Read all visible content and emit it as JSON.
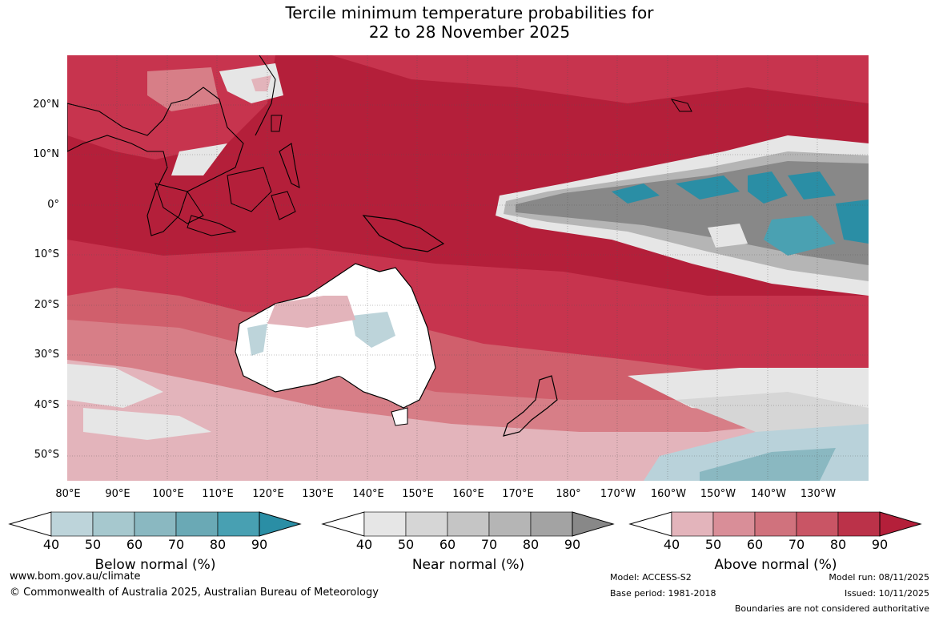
{
  "title_line1": "Tercile minimum temperature probabilities for",
  "title_line2": "22 to 28 November 2025",
  "map": {
    "lat_labels": [
      "20°N",
      "10°N",
      "0°",
      "10°S",
      "20°S",
      "30°S",
      "40°S",
      "50°S"
    ],
    "lon_labels": [
      "80°E",
      "90°E",
      "100°E",
      "110°E",
      "120°E",
      "130°E",
      "140°E",
      "150°E",
      "160°E",
      "170°E",
      "180°",
      "170°W",
      "160°W",
      "150°W",
      "140°W",
      "130°W"
    ],
    "colors": {
      "above_90": "#b41f3a",
      "above_80": "#c7344e",
      "above_70": "#d05f6c",
      "above_60": "#d77e87",
      "above_50": "#e3b4bb",
      "near_40": "#e6e6e6",
      "near_50": "#d6d6d6",
      "near_70": "#b5b5b5",
      "near_90": "#888888",
      "below_50": "#b9d2da",
      "below_80": "#4aa1b2",
      "below_90": "#2a8ea5"
    }
  },
  "legends": [
    {
      "label": "Below normal (%)",
      "ticks": [
        "40",
        "50",
        "60",
        "70",
        "80",
        "90"
      ],
      "colors": [
        "#bdd4da",
        "#a6c8ce",
        "#8ab8c1",
        "#6aa9b5",
        "#48a0b2",
        "#2a8ea5"
      ]
    },
    {
      "label": "Near normal (%)",
      "ticks": [
        "40",
        "50",
        "60",
        "70",
        "80",
        "90"
      ],
      "colors": [
        "#e6e6e6",
        "#d6d6d6",
        "#c5c5c5",
        "#b5b5b5",
        "#a3a3a3",
        "#888888"
      ]
    },
    {
      "label": "Above normal (%)",
      "ticks": [
        "40",
        "50",
        "60",
        "70",
        "80",
        "90"
      ],
      "colors": [
        "#e3b4bb",
        "#d98e98",
        "#d0727d",
        "#c95565",
        "#bb3249",
        "#b41f3a"
      ]
    }
  ],
  "footer": {
    "website": "www.bom.gov.au/climate",
    "copyright": "© Commonwealth of Australia 2025, Australian Bureau of Meteorology",
    "model": "Model: ACCESS-S2",
    "base_period": "Base period: 1981-2018",
    "model_run": "Model run: 08/11/2025",
    "issued": "Issued: 10/11/2025",
    "disclaimer": "Boundaries are not considered authoritative"
  }
}
